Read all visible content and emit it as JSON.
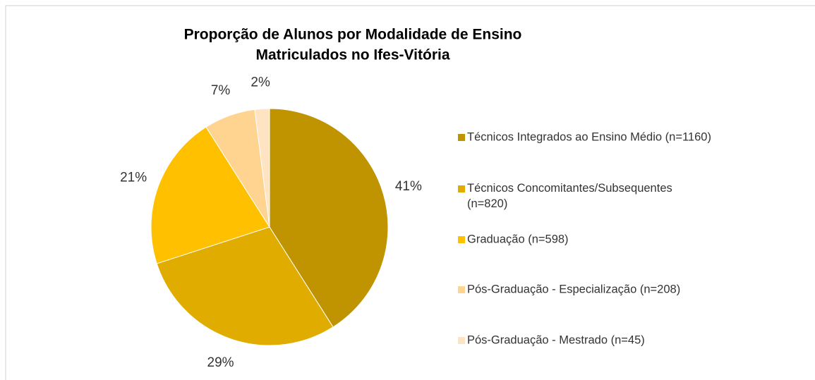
{
  "chart_data": {
    "type": "pie",
    "title": [
      "Proporção de Alunos por Modalidade de Ensino",
      "Matriculados no Ifes-Vitória"
    ],
    "categories": [
      "Técnicos Integrados ao Ensino Médio (n=1160)",
      "Técnicos Concomitantes/Subsequentes (n=820)",
      "Graduação (n=598)",
      "Pós-Graduação - Especialização (n=208)",
      "Pós-Graduação - Mestrado (n=45)"
    ],
    "values": [
      41,
      29,
      21,
      7,
      2
    ],
    "value_labels": [
      "41%",
      "29%",
      "21%",
      "7%",
      "2%"
    ],
    "colors": [
      "#c09400",
      "#e0ac00",
      "#ffc000",
      "#ffd390",
      "#ffe4c4"
    ],
    "legend": "right"
  }
}
